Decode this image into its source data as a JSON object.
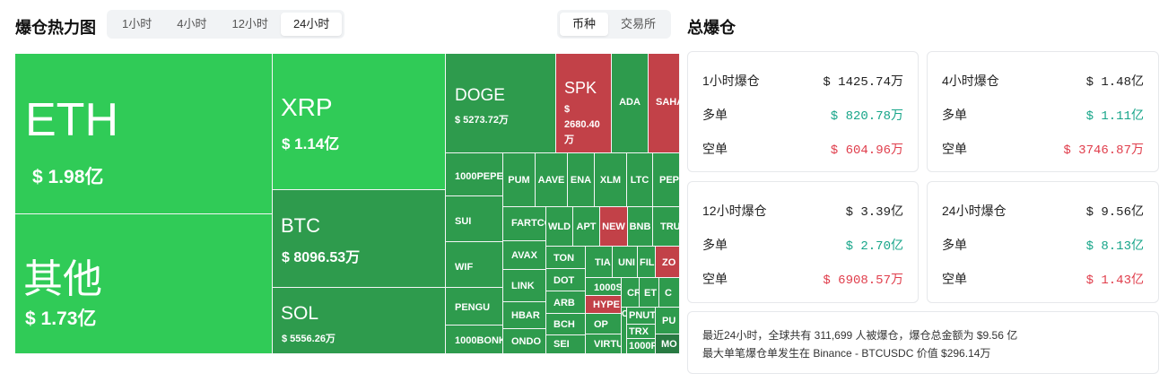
{
  "heatmap": {
    "title": "爆仓热力图",
    "time_tabs": [
      "1小时",
      "4小时",
      "12小时",
      "24小时"
    ],
    "active_time_tab": "24小时",
    "view_tabs": [
      "币种",
      "交易所"
    ],
    "active_view_tab": "币种"
  },
  "colors": {
    "green": "#30cb57",
    "green_dark": "#2e9b4d",
    "red": "#c24148",
    "up_text": "#17a589",
    "down_text": "#e03e4c"
  },
  "tiles": {
    "eth": {
      "symbol": "ETH",
      "amount": "$ 1.98亿"
    },
    "other": {
      "symbol": "其他",
      "amount": "$ 1.73亿"
    },
    "xrp": {
      "symbol": "XRP",
      "amount": "$ 1.14亿"
    },
    "btc": {
      "symbol": "BTC",
      "amount": "$ 8096.53万"
    },
    "sol": {
      "symbol": "SOL",
      "amount": "$ 5556.26万"
    },
    "doge": {
      "symbol": "DOGE",
      "amount": "$ 5273.72万"
    },
    "spk": {
      "symbol": "SPK",
      "amount": "$ 2680.40万"
    },
    "ada": {
      "symbol": "ADA"
    },
    "saha": {
      "symbol": "SAHA"
    },
    "pepe1000": {
      "symbol": "1000PEPE"
    },
    "sui": {
      "symbol": "SUI"
    },
    "wif": {
      "symbol": "WIF"
    },
    "pengu": {
      "symbol": "PENGU"
    },
    "bonk1000": {
      "symbol": "1000BONK"
    },
    "pum": {
      "symbol": "PUM"
    },
    "aave": {
      "symbol": "AAVE"
    },
    "ena": {
      "symbol": "ENA"
    },
    "xlm": {
      "symbol": "XLM"
    },
    "ltc": {
      "symbol": "LTC"
    },
    "pep": {
      "symbol": "PEP"
    },
    "fartco": {
      "symbol": "FARTCO"
    },
    "wld": {
      "symbol": "WLD"
    },
    "apt": {
      "symbol": "APT"
    },
    "new": {
      "symbol": "NEW"
    },
    "bnb": {
      "symbol": "BNB"
    },
    "tru": {
      "symbol": "TRU"
    },
    "avax": {
      "symbol": "AVAX"
    },
    "link": {
      "symbol": "LINK"
    },
    "hbar": {
      "symbol": "HBAR"
    },
    "ondo": {
      "symbol": "ONDO"
    },
    "ton": {
      "symbol": "TON"
    },
    "dot": {
      "symbol": "DOT"
    },
    "arb": {
      "symbol": "ARB"
    },
    "bch": {
      "symbol": "BCH"
    },
    "sei": {
      "symbol": "SEI"
    },
    "tia": {
      "symbol": "TIA"
    },
    "uni": {
      "symbol": "UNI"
    },
    "fil": {
      "symbol": "FIL"
    },
    "zo": {
      "symbol": "ZO"
    },
    "k1000s": {
      "symbol": "1000S"
    },
    "cr1": {
      "symbol": "CR"
    },
    "et": {
      "symbol": "ET"
    },
    "c": {
      "symbol": "C"
    },
    "hype": {
      "symbol": "HYPE"
    },
    "op": {
      "symbol": "OP"
    },
    "virt": {
      "symbol": "VIRTU"
    },
    "cr2": {
      "symbol": "CR"
    },
    "pnut": {
      "symbol": "PNUT"
    },
    "trx": {
      "symbol": "TRX"
    },
    "k1000f": {
      "symbol": "1000F"
    },
    "pu": {
      "symbol": "PU"
    },
    "mo": {
      "symbol": "MO"
    }
  },
  "summary": {
    "title": "总爆仓",
    "long_label": "多单",
    "short_label": "空单",
    "cards": [
      {
        "label": "1小时爆仓",
        "total": "$ 1425.74万",
        "long": "$ 820.78万",
        "short": "$ 604.96万"
      },
      {
        "label": "4小时爆仓",
        "total": "$ 1.48亿",
        "long": "$ 1.11亿",
        "short": "$ 3746.87万"
      },
      {
        "label": "12小时爆仓",
        "total": "$ 3.39亿",
        "long": "$ 2.70亿",
        "short": "$ 6908.57万"
      },
      {
        "label": "24小时爆仓",
        "total": "$ 9.56亿",
        "long": "$ 8.13亿",
        "short": "$ 1.43亿"
      }
    ],
    "note_line1": "最近24小时，全球共有 311,699 人被爆仓，爆仓总金额为 $9.56 亿",
    "note_line2": "最大单笔爆仓单发生在 Binance - BTCUSDC 价值 $296.14万"
  }
}
